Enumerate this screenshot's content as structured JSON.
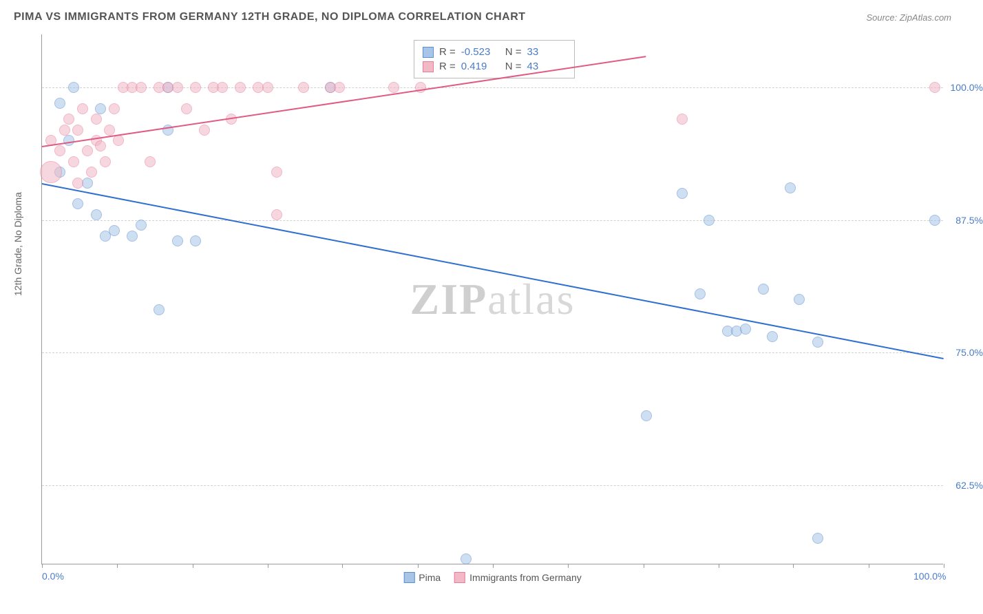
{
  "title": "PIMA VS IMMIGRANTS FROM GERMANY 12TH GRADE, NO DIPLOMA CORRELATION CHART",
  "source": "Source: ZipAtlas.com",
  "ylabel": "12th Grade, No Diploma",
  "watermark": "ZIPatlas",
  "chart": {
    "type": "scatter",
    "xlim": [
      0,
      100
    ],
    "ylim": [
      55,
      105
    ],
    "x_ticks": [
      0,
      8.3,
      16.7,
      25,
      33.3,
      41.7,
      50,
      58.3,
      66.7,
      75,
      83.3,
      91.7,
      100
    ],
    "x_tick_labels": {
      "0": "0.0%",
      "100": "100.0%"
    },
    "y_gridlines": [
      62.5,
      75.0,
      87.5,
      100.0
    ],
    "y_tick_labels": [
      "62.5%",
      "75.0%",
      "87.5%",
      "100.0%"
    ],
    "background_color": "#ffffff",
    "grid_color": "#d0d0d0",
    "series": [
      {
        "name": "Pima",
        "color_fill": "#a8c5e8",
        "color_stroke": "#5b8dd4",
        "color_line": "#2f6fd0",
        "marker_radius": 8,
        "fill_opacity": 0.55,
        "R": "-0.523",
        "N": "33",
        "trend": {
          "x1": 0,
          "y1": 91.0,
          "x2": 100,
          "y2": 74.5
        },
        "points": [
          [
            2,
            98.5
          ],
          [
            3,
            95
          ],
          [
            5,
            91
          ],
          [
            6,
            88
          ],
          [
            7,
            86
          ],
          [
            8,
            86.5
          ],
          [
            10,
            86
          ],
          [
            14,
            96
          ],
          [
            14,
            100
          ],
          [
            15,
            85.5
          ],
          [
            17,
            85.5
          ],
          [
            13,
            79
          ],
          [
            32,
            100
          ],
          [
            47,
            55.5
          ],
          [
            67,
            69
          ],
          [
            71,
            90
          ],
          [
            73,
            80.5
          ],
          [
            74,
            87.5
          ],
          [
            76,
            77
          ],
          [
            77,
            77
          ],
          [
            78,
            77.2
          ],
          [
            80,
            81
          ],
          [
            81,
            76.5
          ],
          [
            83,
            90.5
          ],
          [
            84,
            80
          ],
          [
            86,
            76
          ],
          [
            86,
            57.5
          ],
          [
            99,
            87.5
          ],
          [
            2,
            92
          ],
          [
            4,
            89
          ],
          [
            11,
            87
          ],
          [
            3.5,
            100
          ],
          [
            6.5,
            98
          ]
        ]
      },
      {
        "name": "Immigrants from Germany",
        "color_fill": "#f2b8c6",
        "color_stroke": "#e87a9a",
        "color_line": "#e05a82",
        "marker_radius": 8,
        "fill_opacity": 0.55,
        "R": "0.419",
        "N": "43",
        "trend": {
          "x1": 0,
          "y1": 94.5,
          "x2": 67,
          "y2": 103
        },
        "points": [
          [
            1,
            92,
            16
          ],
          [
            1,
            95
          ],
          [
            2,
            94
          ],
          [
            2.5,
            96
          ],
          [
            3,
            97
          ],
          [
            3.5,
            93
          ],
          [
            4,
            96
          ],
          [
            4.5,
            98
          ],
          [
            5,
            94
          ],
          [
            5.5,
            92
          ],
          [
            6,
            95
          ],
          [
            6,
            97
          ],
          [
            7,
            93
          ],
          [
            7.5,
            96
          ],
          [
            8,
            98
          ],
          [
            8.5,
            95
          ],
          [
            9,
            100
          ],
          [
            10,
            100
          ],
          [
            11,
            100
          ],
          [
            12,
            93
          ],
          [
            13,
            100
          ],
          [
            14,
            100
          ],
          [
            15,
            100
          ],
          [
            16,
            98
          ],
          [
            17,
            100
          ],
          [
            18,
            96
          ],
          [
            19,
            100
          ],
          [
            20,
            100
          ],
          [
            21,
            97
          ],
          [
            22,
            100
          ],
          [
            24,
            100
          ],
          [
            25,
            100
          ],
          [
            26,
            92
          ],
          [
            26,
            88
          ],
          [
            29,
            100
          ],
          [
            32,
            100
          ],
          [
            33,
            100
          ],
          [
            39,
            100
          ],
          [
            42,
            100
          ],
          [
            71,
            97
          ],
          [
            99,
            100
          ],
          [
            4,
            91
          ],
          [
            6.5,
            94.5
          ]
        ]
      }
    ],
    "legend_bottom": [
      {
        "label": "Pima",
        "fill": "#a8c5e8",
        "stroke": "#5b8dd4"
      },
      {
        "label": "Immigrants from Germany",
        "fill": "#f2b8c6",
        "stroke": "#e87a9a"
      }
    ]
  }
}
